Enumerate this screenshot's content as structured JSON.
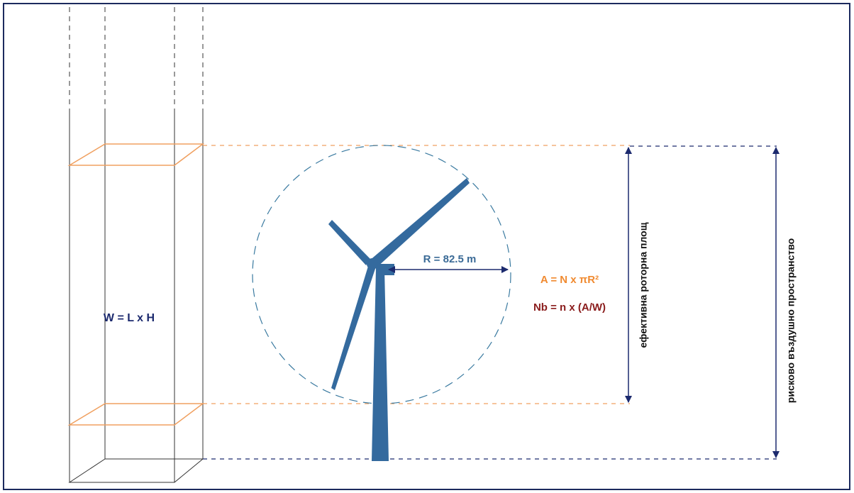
{
  "formula_w": "W = L x H",
  "radius": "R = 82.5 m",
  "formula_a": "A = N x πR²",
  "formula_nb": "Nb = n x (A/W)",
  "label_rotor": "ефективна роторна площ",
  "label_risk": "рисково въздушно пространство"
}
